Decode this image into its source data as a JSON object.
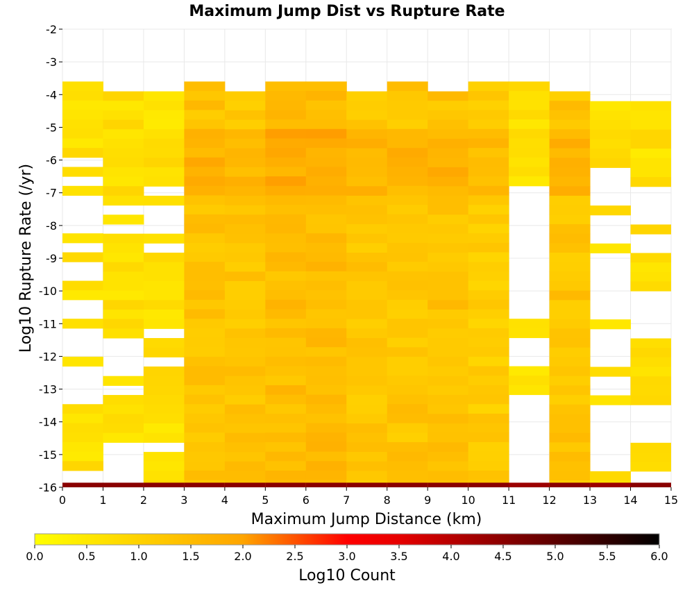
{
  "chart_data": {
    "type": "heatmap",
    "title": "Maximum Jump Dist vs Rupture Rate",
    "xlabel": "Maximum Jump Distance (km)",
    "ylabel": "Log10 Rupture Rate (/yr)",
    "xlim": [
      0,
      15
    ],
    "ylim": [
      -16,
      -2
    ],
    "x_ticks": [
      0,
      1,
      2,
      3,
      4,
      5,
      6,
      7,
      8,
      9,
      10,
      11,
      12,
      13,
      14,
      15
    ],
    "y_ticks": [
      -2,
      -3,
      -4,
      -5,
      -6,
      -7,
      -8,
      -9,
      -10,
      -11,
      -12,
      -13,
      -14,
      -15,
      -16
    ],
    "grid": true,
    "colorbar": {
      "label": "Log10 Count",
      "range": [
        0,
        6
      ],
      "ticks": [
        "0.0",
        "0.5",
        "1.0",
        "1.5",
        "2.0",
        "2.5",
        "3.0",
        "3.5",
        "4.0",
        "4.5",
        "5.0",
        "5.5",
        "6.0"
      ],
      "colors": [
        "#ffff00",
        "#ffa500",
        "#ff0000",
        "#000000"
      ]
    },
    "x_bin_width_km": 1,
    "y_bin_height_log10": 0.29,
    "note_bottom_row": "bins at -16 (rate-zero ruptures) per column",
    "columns": [
      {
        "x": 0.5,
        "top": -3.6,
        "bottom": -15.3,
        "holes": [
          [
            -5.9,
            -6.2
          ],
          [
            -6.5,
            -6.8
          ],
          [
            -7.1,
            -8.2
          ],
          [
            -8.5,
            -8.8
          ],
          [
            -9.1,
            -9.7
          ],
          [
            -10.3,
            -10.8
          ],
          [
            -11.1,
            -11.9
          ],
          [
            -12.4,
            -13.6
          ]
        ],
        "bottom_value": 4.5
      },
      {
        "x": 1.5,
        "top": -3.9,
        "bottom": -14.6,
        "holes": [
          [
            -7.3,
            -7.6
          ],
          [
            -7.9,
            -8.2
          ],
          [
            -11.5,
            -12.5
          ],
          [
            -12.8,
            -13.2
          ]
        ],
        "bottom_value": 4.5
      },
      {
        "x": 2.5,
        "top": -3.9,
        "bottom": -15.9,
        "holes": [
          [
            -6.8,
            -7.1
          ],
          [
            -7.4,
            -8.2
          ],
          [
            -8.5,
            -8.8
          ],
          [
            -11.1,
            -11.4
          ],
          [
            -12.1,
            -12.4
          ],
          [
            -14.6,
            -14.9
          ]
        ],
        "bottom_value": 4.5
      },
      {
        "x": 3.5,
        "top": -3.6,
        "bottom": -15.9,
        "holes": [],
        "bottom_value": 4.5
      },
      {
        "x": 4.5,
        "top": -3.9,
        "bottom": -15.9,
        "holes": [],
        "bottom_value": 4.5
      },
      {
        "x": 5.5,
        "top": -3.6,
        "bottom": -15.9,
        "holes": [],
        "bottom_value": 4.5
      },
      {
        "x": 6.5,
        "top": -3.6,
        "bottom": -15.9,
        "holes": [],
        "bottom_value": 4.5
      },
      {
        "x": 7.5,
        "top": -3.9,
        "bottom": -15.9,
        "holes": [],
        "bottom_value": 4.5
      },
      {
        "x": 8.5,
        "top": -3.6,
        "bottom": -15.9,
        "holes": [],
        "bottom_value": 4.5
      },
      {
        "x": 9.5,
        "top": -3.9,
        "bottom": -15.9,
        "holes": [],
        "bottom_value": 4.5
      },
      {
        "x": 10.5,
        "top": -3.6,
        "bottom": -15.9,
        "holes": [],
        "bottom_value": 4.5
      },
      {
        "x": 11.5,
        "top": -3.6,
        "bottom": -13.0,
        "holes": [
          [
            -6.8,
            -10.8
          ],
          [
            -11.4,
            -12.4
          ]
        ],
        "bottom_value": 4.3
      },
      {
        "x": 12.5,
        "top": -3.9,
        "bottom": -15.9,
        "holes": [],
        "bottom_value": 4.5
      },
      {
        "x": 13.5,
        "top": -4.2,
        "bottom": -15.9,
        "holes": [
          [
            -6.2,
            -7.3
          ],
          [
            -7.6,
            -8.5
          ],
          [
            -8.8,
            -10.8
          ],
          [
            -11.1,
            -12.4
          ],
          [
            -12.7,
            -13.2
          ],
          [
            -13.5,
            -15.6
          ]
        ],
        "bottom_value": 4.3
      },
      {
        "x": 14.5,
        "top": -4.2,
        "bottom": -15.5,
        "holes": [
          [
            -6.8,
            -7.9
          ],
          [
            -8.2,
            -8.8
          ],
          [
            -10.6,
            -10.0
          ],
          [
            -10.6,
            -11.5
          ],
          [
            -13.6,
            -14.7
          ]
        ],
        "bottom_value": 4.5
      }
    ]
  }
}
